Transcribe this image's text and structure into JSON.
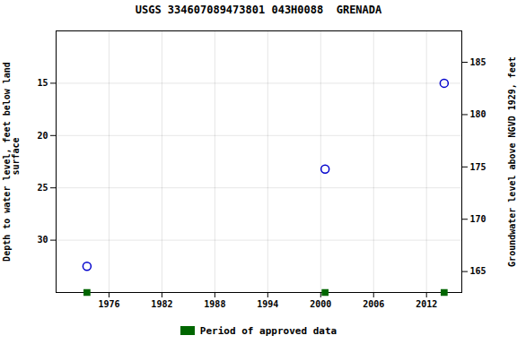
{
  "chart_data": {
    "type": "scatter",
    "title": "USGS 334607089473801 043H0088  GRENADA",
    "x": [
      1973.5,
      2000.5,
      2014.0
    ],
    "series": [
      {
        "values": [
          32.5,
          23.2,
          15.0
        ],
        "color": "#0000cc",
        "marker": "open_circle"
      },
      {
        "name": "Period of approved data",
        "values": [
          35,
          35,
          35
        ],
        "color": "#006600",
        "marker": "square"
      }
    ],
    "xlim": [
      1970,
      2016
    ],
    "xticks": [
      1976,
      1982,
      1988,
      1994,
      2000,
      2006,
      2012
    ],
    "ylim": [
      35,
      10
    ],
    "yticks": [
      15,
      20,
      25,
      30
    ],
    "y2lim": [
      163,
      188
    ],
    "y2ticks": [
      165,
      170,
      175,
      180,
      185
    ],
    "ylabel": "Depth to water level, feet below land\n  surface",
    "y2label": "Groundwater level above NGVD 1929, feet",
    "grid": true,
    "legend": "bottom"
  }
}
